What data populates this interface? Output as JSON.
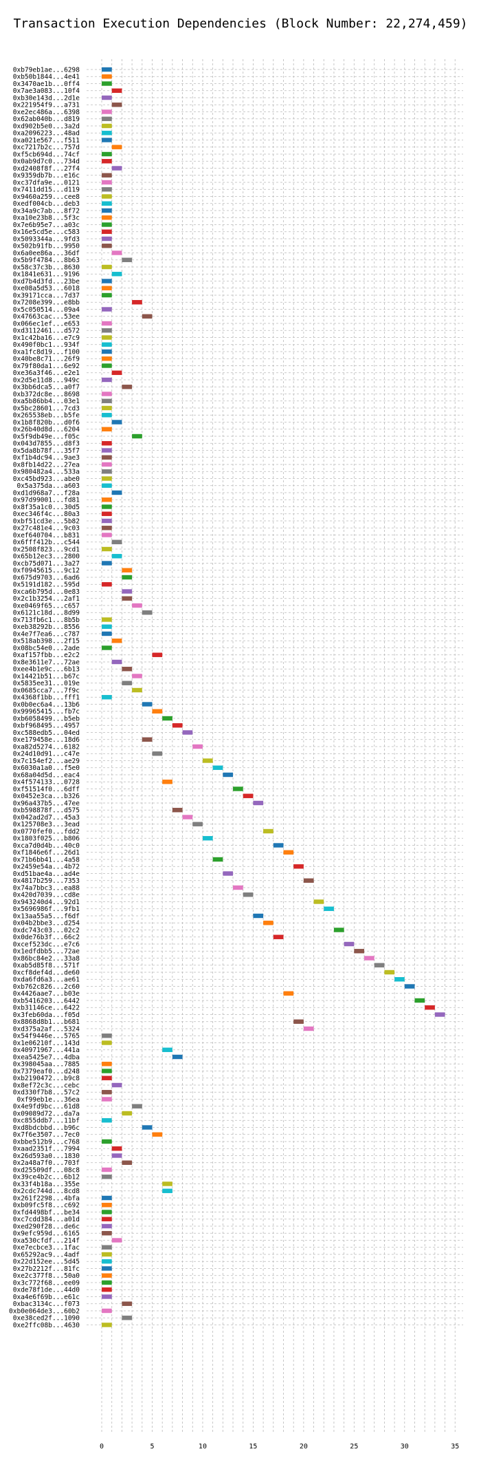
{
  "chart_data": {
    "type": "bar",
    "orientation": "horizontal",
    "title": "Transaction Execution Dependencies (Block Number: 22,274,459)",
    "xlabel": "",
    "ylabel": "",
    "xlim": [
      -1.5,
      35.8
    ],
    "xticks": [
      0,
      5,
      10,
      15,
      20,
      25,
      30,
      35
    ],
    "grid": true,
    "bar_width": 1,
    "color_palette": [
      "#1f77b4",
      "#ff7f0e",
      "#2ca02c",
      "#d62728",
      "#9467bd",
      "#8c564b",
      "#e377c2",
      "#7f7f7f",
      "#bcbd22",
      "#17becf"
    ],
    "categories": [
      "0xb79eb1ae...6298",
      "0xb50b1844...4e41",
      "0x3470ae1b...0ff4",
      "0x7ae3a083...10f4",
      "0xb30e143d...2d1e",
      "0x221954f9...a731",
      "0xe2ec486a...6398",
      "0x62ab040b...d819",
      "0xd902b5e0...3a2d",
      "0xa2096223...48ad",
      "0xa021e567...f511",
      "0xc7217b2c...757d",
      "0xf5cb694d...74cf",
      "0x0ab9d7c0...734d",
      "0xd2408f8f...27f4",
      "0x9359db7b...e16c",
      "0xc37dfa9e...0121",
      "0x7411dd15...d119",
      "0x9460a259...cee8",
      "0xedf004cb...deb3",
      "0x34a9c7ab...8f72",
      "0xa10e23b8...5f3c",
      "0x7e6b95e7...a03c",
      "0x16e5cd5e...c583",
      "0x5093344a...9fd3",
      "0x502b91fb...9950",
      "0x6a0ee86a...36df",
      "0x5b9f4784...8b63",
      "0x58c37c3b...8630",
      "0x1841e631...9196",
      "0xd7b4d3fd...23be",
      "0xe08a5d53...6018",
      "0x39171cca...7d37",
      "0x7208e399...e8bb",
      "0x5c050514...09a4",
      "0x47663cac...53ee",
      "0x066ec1ef...e653",
      "0xd3112461...d572",
      "0x1c42ba16...e7c9",
      "0x490f0bc1...934f",
      "0xa1fc8d19...f100",
      "0x40be8c71...26f9",
      "0x79f80da1...6e92",
      "0xe36a3f46...e2e1",
      "0x2d5e11d8...949c",
      "0x3bb6dca5...a0f7",
      "0xb372dc8e...8698",
      "0xa5b86bb4...03e1",
      "0x5bc28601...7cd3",
      "0x265538eb...b5fe",
      "0x1b8f820b...d0f6",
      "0x26b40d8d...6204",
      "0x5f9db49e...f05c",
      "0x043d7855...d8f3",
      "0x5da8b78f...35f7",
      "0xf1b4dc94...9ae3",
      "0x8fb14d22...27ea",
      "0x980482a4...533a",
      "0xc45bd923...abe0",
      "0x5a375da...a603",
      "0xd1d968a7...f28a",
      "0x97d99001...fd81",
      "0x8f35a1c0...30d5",
      "0xec346f4c...80a3",
      "0xbf51cd3e...5b82",
      "0x27c481e4...9c03",
      "0xef640704...b831",
      "0x6fff412b...c544",
      "0x2508f823...9cd1",
      "0x65b12ec3...2800",
      "0xcb75d071...3a27",
      "0xf0945615...9c12",
      "0x675d9703...6ad6",
      "0x5191d182...595d",
      "0xca6b795d...0e83",
      "0x2c1b3254...2af1",
      "0xe0469f65...c657",
      "0x6121c18d...8d99",
      "0x713fb6c1...8b5b",
      "0xeb38292b...8556",
      "0x4e7f7ea6...c787",
      "0x518ab398...2f15",
      "0x08bc54e0...2ade",
      "0xaf157fbb...e2c2",
      "0x8e3611e7...72ae",
      "0xee4b1e9c...6b13",
      "0x14421b51...b67c",
      "0x5835ee31...019e",
      "0x0685cca7...7f9c",
      "0x4368f1bb...fff1",
      "0x0b0ec6a4...13b6",
      "0x99965415...fb7c",
      "0xb6058499...b5eb",
      "0xbf968495...4957",
      "0xc588edb5...04ed",
      "0xe179458e...18d6",
      "0xa82d5274...6182",
      "0x24d10d91...c47e",
      "0x7c154ef2...ae29",
      "0x6030a1a0...f5e0",
      "0x68a04d5d...eac4",
      "0x4f574133...0728",
      "0xf51514f0...6dff",
      "0x0452e3ca...b326",
      "0x96a437b5...47ee",
      "0xb598878f...d575",
      "0x042ad2d7...45a3",
      "0x125708e3...3ead",
      "0x0770fef0...fdd2",
      "0x1803f025...b806",
      "0xca7d0d4b...40c0",
      "0xf1846e6f...26d1",
      "0x71b6bb41...4a58",
      "0x2459e54a...4b72",
      "0xd51bae4a...ad4e",
      "0x4817b259...7353",
      "0x74a7bbc3...ea88",
      "0x420d7039...cd8e",
      "0x943240d4...92d1",
      "0x5696986f...9fb1",
      "0x13aa55a5...f6df",
      "0x04b2bbe3...d254",
      "0xdc743c03...02c2",
      "0x0de76b3f...66c2",
      "0xcef523dc...e7c6",
      "0x1edfdbb5...72ae",
      "0x86bc84e2...33a8",
      "0xab5d85f8...571f",
      "0xcf8def4d...de60",
      "0xda6fd6a3...ae61",
      "0xb762c826...2c60",
      "0x4426aae7...b03e",
      "0xb5416203...6442",
      "0xb31146ce...6422",
      "0x3feb60da...f05d",
      "0x8868d8b1...b681",
      "0xd375a2af...5324",
      "0x54f9446e...5765",
      "0x1e06210f...143d",
      "0x40971967...441a",
      "0xea5425e7...4dba",
      "0x398045aa...7885",
      "0x7379eaf0...d248",
      "0xb2190472...b9c8",
      "0x8ef72c3c...cebc",
      "0xd330f7b8...57c2",
      "0xf99eb1e...36ea",
      "0x4e9fd9bc...61d8",
      "0x09089d72...da7a",
      "0xc855ddb7...11bf",
      "0xd8bdcbbd...b96c",
      "0x7f6e3507...7ec0",
      "0xbbe512b9...c768",
      "0xaad2351f...7994",
      "0x26d593a0...1830",
      "0x2a48a7f0...703f",
      "0xd25509df...08c8",
      "0x39ce4b2c...6b12",
      "0x33f4b18a...355e",
      "0x2cdc744d...8cd8",
      "0x261f2298...4bfa",
      "0xb09fc5f8...c692",
      "0xfd4498bf...be34",
      "0xc7cdd384...a01d",
      "0xed290f28...de6c",
      "0x9efc959d...6165",
      "0xa530cfdf...214f",
      "0xe7ecbce3...1fac",
      "0x65292ac9...4adf",
      "0x22d152ee...5d45",
      "0x27b2212f...81fc",
      "0xe2c377f8...50a0",
      "0x3c772f68...ee09",
      "0xde78f1de...44d0",
      "0xa4e6f69b...e61c",
      "0xbac3134c...f073",
      "0xb0e064de3...60b2",
      "0xe38ced2f...1090",
      "0xe2ffc08b...4630"
    ],
    "values": [
      0,
      0,
      0,
      1,
      0,
      1,
      0,
      0,
      0,
      0,
      0,
      1,
      0,
      0,
      1,
      0,
      0,
      0,
      0,
      0,
      0,
      0,
      0,
      0,
      0,
      0,
      1,
      2,
      0,
      1,
      0,
      0,
      0,
      3,
      0,
      4,
      0,
      0,
      0,
      0,
      0,
      0,
      0,
      1,
      0,
      2,
      0,
      0,
      0,
      0,
      1,
      0,
      3,
      0,
      0,
      0,
      0,
      0,
      0,
      0,
      1,
      0,
      0,
      0,
      0,
      0,
      0,
      1,
      0,
      1,
      0,
      2,
      2,
      0,
      2,
      2,
      3,
      4,
      0,
      0,
      0,
      1,
      0,
      5,
      1,
      2,
      3,
      2,
      3,
      0,
      4,
      5,
      6,
      7,
      8,
      4,
      9,
      5,
      10,
      11,
      12,
      6,
      13,
      14,
      15,
      7,
      8,
      9,
      16,
      10,
      17,
      18,
      11,
      19,
      12,
      20,
      13,
      14,
      21,
      22,
      15,
      16,
      23,
      17,
      24,
      25,
      26,
      27,
      28,
      29,
      30,
      18,
      31,
      32,
      33,
      19,
      20,
      0,
      0,
      6,
      7,
      0,
      0,
      0,
      1,
      0,
      0,
      3,
      2,
      0,
      4,
      5,
      0,
      1,
      1,
      2,
      0,
      0,
      6,
      6,
      0,
      0,
      0,
      0,
      0,
      0,
      1,
      0,
      0,
      0,
      0,
      0,
      0,
      0,
      0,
      2,
      0,
      2,
      0
    ]
  }
}
